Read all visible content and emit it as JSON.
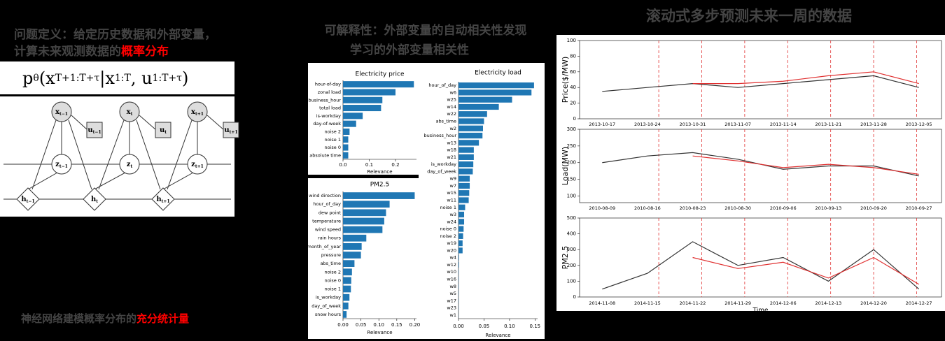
{
  "heading": {
    "line1": "问题定义：给定历史数据和外部变量，",
    "line2": "计算未来观测数据的",
    "line2_highlight": "概率分布"
  },
  "formula": [
    {
      "text": "p",
      "sub": "θ"
    },
    {
      "text": "(x",
      "sub": "T+1:T+τ"
    },
    {
      "text": "|x",
      "sub": "1:T"
    },
    {
      "text": ", u",
      "sub": "1:T+τ"
    },
    {
      "text": ")"
    }
  ],
  "diagram": {
    "nodes": [
      {
        "symbol": "x",
        "sub": "t−1"
      },
      {
        "symbol": "x",
        "sub": "t"
      },
      {
        "symbol": "x",
        "sub": "t+1"
      },
      {
        "symbol": "u",
        "sub": "t−1"
      },
      {
        "symbol": "u",
        "sub": "t"
      },
      {
        "symbol": "u",
        "sub": "t+1"
      },
      {
        "symbol": "z",
        "sub": "t−1"
      },
      {
        "symbol": "z",
        "sub": "t"
      },
      {
        "symbol": "z",
        "sub": "t+1"
      },
      {
        "symbol": "h",
        "sub": "t−1"
      },
      {
        "symbol": "h",
        "sub": "t"
      },
      {
        "symbol": "h",
        "sub": "t+1"
      }
    ]
  },
  "footer": {
    "text": "神经网络建模概率分布的",
    "highlight": "充分统计量"
  },
  "middle": {
    "title": "可解释性：外部变量的自动相关性发现",
    "subtitle": "学习的外部变量相关性"
  },
  "right": {
    "title": "滚动式多步预测未来一周的数据"
  },
  "chart_data": [
    {
      "type": "bar",
      "title": "Electricity price",
      "xlabel": "Relevance",
      "color": "#1f77b4",
      "categories": [
        "hour-of-day",
        "zonal load",
        "business_hour",
        "total load",
        "is-workday",
        "day-of-week",
        "noise 2",
        "noise 1",
        "noise 0",
        "absolute time"
      ],
      "values": [
        0.27,
        0.2,
        0.15,
        0.145,
        0.075,
        0.05,
        0.025,
        0.02,
        0.02,
        0.02
      ],
      "xlim": [
        0,
        0.28
      ],
      "xticks": [
        {
          "value": 0,
          "label": "0.0"
        },
        0.1,
        0.2
      ]
    },
    {
      "type": "bar",
      "title": "Electricity load",
      "xlabel": "Relevance",
      "color": "#1f77b4",
      "categories": [
        "hour_of_day",
        "w6",
        "w25",
        "w14",
        "w22",
        "abs_time",
        "w2",
        "business_hour",
        "w13",
        "w18",
        "w21",
        "is_workday",
        "day_of_week",
        "w9",
        "w7",
        "w15",
        "w11",
        "noise 1",
        "w3",
        "w24",
        "noise 0",
        "noise 2",
        "w19",
        "w20",
        "w4",
        "w12",
        "w10",
        "w16",
        "w8",
        "w5",
        "w17",
        "w23",
        "w1"
      ],
      "values": [
        0.148,
        0.143,
        0.105,
        0.079,
        0.056,
        0.05,
        0.048,
        0.047,
        0.04,
        0.03,
        0.03,
        0.029,
        0.028,
        0.022,
        0.022,
        0.021,
        0.02,
        0.013,
        0.011,
        0.011,
        0.01,
        0.009,
        0.008,
        0.008,
        0.001,
        0.001,
        0.0005,
        0.0005,
        0.0005,
        0.0004,
        0.0004,
        0.0003,
        0.0002
      ],
      "xlim": [
        0,
        0.155
      ],
      "xticks": [
        {
          "value": 0,
          "label": "0.00"
        },
        0.05,
        {
          "value": 0.1,
          "label": "0.10"
        },
        0.15
      ]
    },
    {
      "type": "bar",
      "title": "PM2.5",
      "xlabel": "Relevance",
      "color": "#1f77b4",
      "categories": [
        "wind direction",
        "hour_of_day",
        "dew point",
        "temperature",
        "wind speed",
        "rain hours",
        "month_of_year",
        "pressure",
        "abs_time",
        "noise 2",
        "noise 0",
        "noise 1",
        "is_workday",
        "day_of_week",
        "snow hours"
      ],
      "values": [
        0.2,
        0.13,
        0.12,
        0.115,
        0.11,
        0.065,
        0.052,
        0.05,
        0.032,
        0.025,
        0.023,
        0.022,
        0.018,
        0.015,
        0.01
      ],
      "xlim": [
        0,
        0.205
      ],
      "xticks": [
        {
          "value": 0,
          "label": "0.00"
        },
        0.05,
        {
          "value": 0.1,
          "label": "0.10"
        },
        0.15,
        {
          "value": 0.2,
          "label": "0.20"
        }
      ]
    },
    {
      "type": "line",
      "ylabel": "Price($/MW)",
      "ylim": [
        0,
        100
      ],
      "yticks": [
        0,
        20,
        40,
        60,
        80,
        100
      ],
      "categories": [
        "2013-10-17",
        "2013-10-24",
        "2013-10-31",
        "2013-11-07",
        "2013-11-14",
        "2013-11-21",
        "2013-11-28",
        "2013-12-05"
      ],
      "series": [
        {
          "color": "#333333",
          "values": [
            35,
            40,
            45,
            40,
            45,
            50,
            55,
            40
          ]
        },
        {
          "color": "#e03030",
          "values": [
            null,
            null,
            45,
            45,
            48,
            55,
            60,
            45
          ]
        }
      ]
    },
    {
      "type": "line",
      "ylabel": "Load(MW)",
      "ylim": [
        80,
        300
      ],
      "yticks": [
        100,
        150,
        200,
        250,
        300
      ],
      "categories": [
        "2010-08-09",
        "2010-08-16",
        "2010-08-23",
        "2010-08-30",
        "2010-09-06",
        "2010-09-13",
        "2010-09-20",
        "2010-09-27"
      ],
      "series": [
        {
          "color": "#333333",
          "values": [
            200,
            220,
            230,
            210,
            180,
            190,
            190,
            160
          ]
        },
        {
          "color": "#e03030",
          "values": [
            null,
            null,
            220,
            205,
            185,
            195,
            185,
            165
          ]
        }
      ]
    },
    {
      "type": "line",
      "ylabel": "PM2.5",
      "xlabel": "Time",
      "ylim": [
        0,
        500
      ],
      "yticks": [
        0,
        100,
        200,
        300,
        400,
        500
      ],
      "categories": [
        "2014-11-08",
        "2014-11-15",
        "2014-11-22",
        "2014-11-29",
        "2014-12-06",
        "2014-12-13",
        "2014-12-20",
        "2014-12-27"
      ],
      "series": [
        {
          "color": "#333333",
          "values": [
            50,
            150,
            350,
            200,
            250,
            100,
            300,
            50
          ]
        },
        {
          "color": "#e03030",
          "values": [
            null,
            null,
            250,
            180,
            220,
            120,
            250,
            80
          ]
        }
      ]
    }
  ]
}
